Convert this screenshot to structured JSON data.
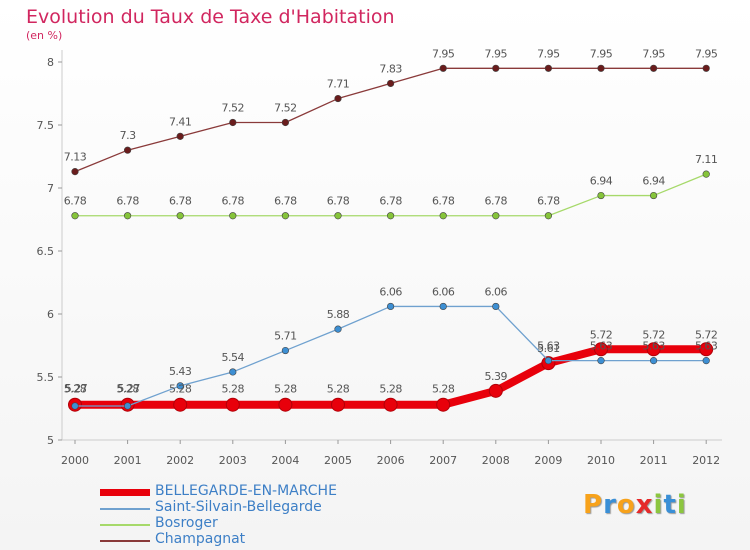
{
  "header": {
    "title": "Evolution du Taux de Taxe d'Habitation",
    "subtitle": "(en %)"
  },
  "logo": {
    "text": "Proxiti",
    "letters": [
      {
        "ch": "P",
        "color": "#f7a21b"
      },
      {
        "ch": "r",
        "color": "#3a8fd6"
      },
      {
        "ch": "o",
        "color": "#f7a21b"
      },
      {
        "ch": "x",
        "color": "#e52a2a"
      },
      {
        "ch": "i",
        "color": "#8cc63f"
      },
      {
        "ch": "t",
        "color": "#3a8fd6"
      },
      {
        "ch": "i",
        "color": "#8cc63f"
      }
    ]
  },
  "chart_data": {
    "type": "line",
    "title": "Evolution du Taux de Taxe d'Habitation",
    "ylabel": "(en %)",
    "xlabel": "",
    "x": [
      "2000",
      "2001",
      "2002",
      "2003",
      "2004",
      "2005",
      "2006",
      "2007",
      "2008",
      "2009",
      "2010",
      "2011",
      "2012"
    ],
    "ylim": [
      5,
      8
    ],
    "yticks": [
      "5",
      "5.5",
      "6",
      "6.5",
      "7",
      "7.5",
      "8"
    ],
    "grid": false,
    "legend_position": "bottom-left",
    "series": [
      {
        "name": "BELLEGARDE-EN-MARCHE",
        "color": "#e8000b",
        "marker_color": "#e8000b",
        "values": [
          5.28,
          5.28,
          5.28,
          5.28,
          5.28,
          5.28,
          5.28,
          5.28,
          5.39,
          5.61,
          5.72,
          5.72,
          5.72
        ],
        "labels": [
          "5.28",
          "5.28",
          "5.28",
          "5.28",
          "5.28",
          "5.28",
          "5.28",
          "5.28",
          "5.39",
          "5.61",
          "5.72",
          "5.72",
          "5.72"
        ]
      },
      {
        "name": "Saint-Silvain-Bellegarde",
        "color": "#6fa1cf",
        "marker_color": "#3d8fd3",
        "values": [
          5.27,
          5.27,
          5.43,
          5.54,
          5.71,
          5.88,
          6.06,
          6.06,
          6.06,
          5.63,
          5.63,
          5.63,
          5.63
        ],
        "labels": [
          "5.27",
          "5.27",
          "5.43",
          "5.54",
          "5.71",
          "5.88",
          "6.06",
          "6.06",
          "6.06",
          "5.63",
          "5.63",
          "5.63",
          "5.63"
        ]
      },
      {
        "name": "Bosroger",
        "color": "#a6d96a",
        "marker_color": "#86c43a",
        "values": [
          6.78,
          6.78,
          6.78,
          6.78,
          6.78,
          6.78,
          6.78,
          6.78,
          6.78,
          6.78,
          6.94,
          6.94,
          7.11
        ],
        "labels": [
          "6.78",
          "6.78",
          "6.78",
          "6.78",
          "6.78",
          "6.78",
          "6.78",
          "6.78",
          "6.78",
          "6.78",
          "6.94",
          "6.94",
          "7.11"
        ]
      },
      {
        "name": "Champagnat",
        "color": "#8a3a3a",
        "marker_color": "#6a1c1c",
        "values": [
          7.13,
          7.3,
          7.41,
          7.52,
          7.52,
          7.71,
          7.83,
          7.95,
          7.95,
          7.95,
          7.95,
          7.95,
          7.95
        ],
        "labels": [
          "7.13",
          "7.3",
          "7.41",
          "7.52",
          "7.52",
          "7.71",
          "7.83",
          "7.95",
          "7.95",
          "7.95",
          "7.95",
          "7.95",
          "7.95"
        ]
      }
    ]
  }
}
